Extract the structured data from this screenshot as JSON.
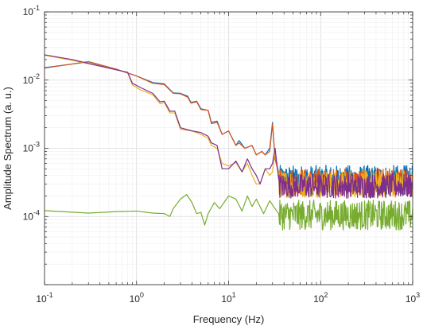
{
  "chart_data": {
    "type": "line",
    "xscale": "log",
    "yscale": "log",
    "xlabel": "Frequency (Hz)",
    "ylabel": "Amplitude Spectrum (a. u.)",
    "xlim": [
      0.1,
      1000
    ],
    "ylim": [
      1e-05,
      0.1
    ],
    "grid": true,
    "minor_grid": true,
    "x_ticks": [
      {
        "value": 0.1,
        "base": "10",
        "exp": "-1"
      },
      {
        "value": 1,
        "base": "10",
        "exp": "0"
      },
      {
        "value": 10,
        "base": "10",
        "exp": "1"
      },
      {
        "value": 100,
        "base": "10",
        "exp": "2"
      },
      {
        "value": 1000,
        "base": "10",
        "exp": "3"
      }
    ],
    "y_ticks": [
      {
        "value": 0.1,
        "base": "10",
        "exp": "-1"
      },
      {
        "value": 0.01,
        "base": "10",
        "exp": "-2"
      },
      {
        "value": 0.001,
        "base": "10",
        "exp": "-3"
      },
      {
        "value": 0.0001,
        "base": "10",
        "exp": "-4"
      }
    ],
    "series": [
      {
        "color": "#0072BD",
        "noise_floor": {
          "x_start": 35,
          "y_mean": 0.00034,
          "spread": 0.22
        },
        "points": [
          [
            0.1,
            0.0152
          ],
          [
            0.3,
            0.0185
          ],
          [
            0.6,
            0.0145
          ],
          [
            1.0,
            0.0115
          ],
          [
            1.5,
            0.0092
          ],
          [
            2.0,
            0.0088
          ],
          [
            2.5,
            0.0065
          ],
          [
            3.0,
            0.0064
          ],
          [
            3.6,
            0.0058
          ],
          [
            3.9,
            0.0047
          ],
          [
            4.5,
            0.0049
          ],
          [
            5.0,
            0.0038
          ],
          [
            6.0,
            0.0036
          ],
          [
            6.5,
            0.0024
          ],
          [
            7.5,
            0.0025
          ],
          [
            8.5,
            0.0016
          ],
          [
            10,
            0.0018
          ],
          [
            12,
            0.0011
          ],
          [
            13,
            0.0013
          ],
          [
            15,
            0.001
          ],
          [
            18,
            0.0011
          ],
          [
            20,
            0.0008
          ],
          [
            23,
            0.0009
          ],
          [
            25,
            0.0008
          ],
          [
            28,
            0.001
          ],
          [
            30,
            0.0024
          ],
          [
            32,
            0.0007
          ],
          [
            35,
            0.00045
          ]
        ]
      },
      {
        "color": "#D95319",
        "noise_floor": {
          "x_start": 35,
          "y_mean": 0.00032,
          "spread": 0.2
        },
        "points": [
          [
            0.1,
            0.015
          ],
          [
            0.3,
            0.0187
          ],
          [
            0.6,
            0.0145
          ],
          [
            1.0,
            0.0115
          ],
          [
            1.5,
            0.009
          ],
          [
            2.0,
            0.0086
          ],
          [
            2.5,
            0.0064
          ],
          [
            3.0,
            0.0063
          ],
          [
            3.6,
            0.0056
          ],
          [
            3.9,
            0.0046
          ],
          [
            4.5,
            0.0048
          ],
          [
            5.0,
            0.0037
          ],
          [
            6.0,
            0.0036
          ],
          [
            6.5,
            0.0023
          ],
          [
            7.5,
            0.0024
          ],
          [
            8.5,
            0.0016
          ],
          [
            10,
            0.0018
          ],
          [
            12,
            0.0011
          ],
          [
            13,
            0.0012
          ],
          [
            15,
            0.001
          ],
          [
            18,
            0.0011
          ],
          [
            20,
            0.0008
          ],
          [
            23,
            0.0009
          ],
          [
            25,
            0.0008
          ],
          [
            28,
            0.0009
          ],
          [
            30,
            0.0023
          ],
          [
            32,
            0.0007
          ],
          [
            35,
            0.00042
          ]
        ]
      },
      {
        "color": "#EDB120",
        "noise_floor": {
          "x_start": 35,
          "y_mean": 0.0003,
          "spread": 0.2
        },
        "points": [
          [
            0.1,
            0.0232
          ],
          [
            0.2,
            0.0195
          ],
          [
            0.5,
            0.015
          ],
          [
            0.8,
            0.013
          ],
          [
            0.9,
            0.0085
          ],
          [
            1.1,
            0.0072
          ],
          [
            1.5,
            0.0061
          ],
          [
            1.8,
            0.0045
          ],
          [
            2.0,
            0.0047
          ],
          [
            2.3,
            0.0033
          ],
          [
            2.6,
            0.0033
          ],
          [
            3.0,
            0.0019
          ],
          [
            4.0,
            0.0018
          ],
          [
            5.0,
            0.0016
          ],
          [
            6.0,
            0.0014
          ],
          [
            6.5,
            0.0011
          ],
          [
            7.5,
            0.001
          ],
          [
            8.5,
            0.0006
          ],
          [
            10,
            0.00055
          ],
          [
            12,
            0.00062
          ],
          [
            14,
            0.00045
          ],
          [
            16,
            0.0006
          ],
          [
            18,
            0.0004
          ],
          [
            20,
            0.0003
          ],
          [
            22,
            0.0003
          ],
          [
            25,
            0.0005
          ],
          [
            28,
            0.0004
          ],
          [
            30,
            0.00045
          ],
          [
            32,
            0.0009
          ],
          [
            35,
            0.0004
          ]
        ]
      },
      {
        "color": "#7E2F8E",
        "noise_floor": {
          "x_start": 35,
          "y_mean": 0.00028,
          "spread": 0.18
        },
        "points": [
          [
            0.1,
            0.0235
          ],
          [
            0.2,
            0.02
          ],
          [
            0.5,
            0.015
          ],
          [
            0.8,
            0.013
          ],
          [
            0.9,
            0.009
          ],
          [
            1.1,
            0.0078
          ],
          [
            1.5,
            0.0064
          ],
          [
            1.8,
            0.0048
          ],
          [
            2.0,
            0.0049
          ],
          [
            2.3,
            0.0035
          ],
          [
            2.6,
            0.0035
          ],
          [
            3.0,
            0.002
          ],
          [
            4.0,
            0.0018
          ],
          [
            5.0,
            0.0017
          ],
          [
            6.0,
            0.0015
          ],
          [
            6.5,
            0.0012
          ],
          [
            7.5,
            0.0011
          ],
          [
            8.5,
            0.0005
          ],
          [
            10,
            0.0005
          ],
          [
            12,
            0.00065
          ],
          [
            14,
            0.00045
          ],
          [
            16,
            0.0007
          ],
          [
            18,
            0.0005
          ],
          [
            20,
            0.0004
          ],
          [
            22,
            0.0003
          ],
          [
            25,
            0.0005
          ],
          [
            28,
            0.0005
          ],
          [
            30,
            0.0006
          ],
          [
            32,
            0.001
          ],
          [
            35,
            0.00035
          ]
        ]
      },
      {
        "color": "#77AC30",
        "noise_floor": {
          "x_start": 35,
          "y_mean": 0.000105,
          "spread": 0.22
        },
        "points": [
          [
            0.1,
            0.000122
          ],
          [
            0.3,
            0.000112
          ],
          [
            0.6,
            0.000118
          ],
          [
            1.0,
            0.00012
          ],
          [
            1.5,
            0.000112
          ],
          [
            2.0,
            0.00011
          ],
          [
            2.3,
            0.0001
          ],
          [
            2.5,
            0.00013
          ],
          [
            3.0,
            0.00018
          ],
          [
            3.5,
            0.00021
          ],
          [
            4.0,
            0.00016
          ],
          [
            4.5,
            0.00011
          ],
          [
            5.0,
            0.000115
          ],
          [
            5.5,
            7.5e-05
          ],
          [
            6.0,
            0.00011
          ],
          [
            7.0,
            0.00016
          ],
          [
            8.0,
            0.00013
          ],
          [
            10,
            0.0002
          ],
          [
            12,
            0.00018
          ],
          [
            14,
            0.00012
          ],
          [
            16,
            0.0002
          ],
          [
            18,
            0.00014
          ],
          [
            20,
            0.00018
          ],
          [
            24,
            0.00011
          ],
          [
            28,
            0.00017
          ],
          [
            32,
            0.00013
          ],
          [
            35,
            0.00011
          ]
        ]
      }
    ]
  }
}
